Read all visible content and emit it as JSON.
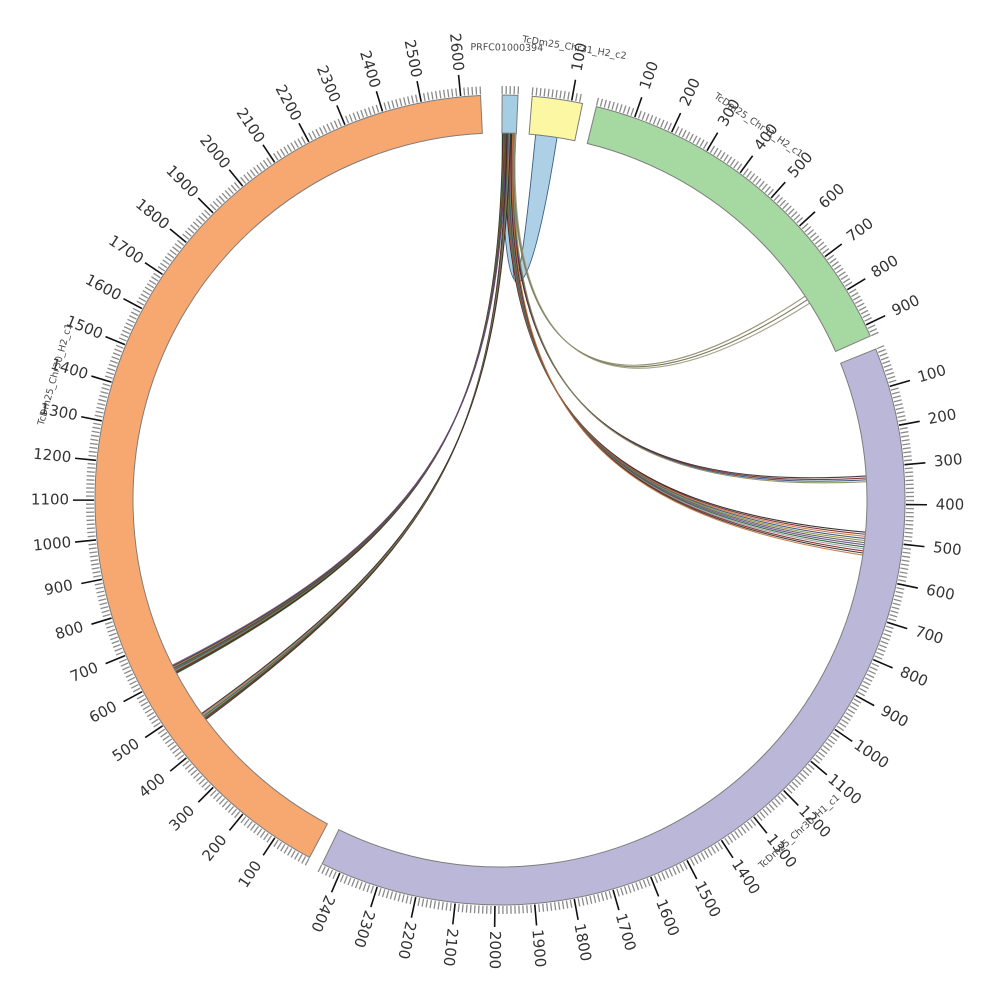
{
  "figure": {
    "background": "#ffffff",
    "description": "Circos-style synteny plot of chromosome contigs with connecting ribbons"
  },
  "chart_data": {
    "type": "circos",
    "center": [
      500,
      500
    ],
    "radius_outer": 405,
    "radius_inner": 367,
    "deg_per_unit": 0.0563,
    "gap_deg": 2.0,
    "start_deg": 0.3,
    "tick": {
      "minor_every": 10,
      "major_every": 100,
      "minor_len": 8,
      "major_len": 21,
      "minor_color": "#8a8a8a",
      "major_color": "#111111",
      "label_radius": 450,
      "label_color": "#333333",
      "label_font_px": 15
    },
    "name_label": {
      "color": "#4a4a4a",
      "font_px": 9.5
    },
    "segments": [
      {
        "name": "PRFC01000394",
        "color": "#A6CEE3",
        "length": 40,
        "flip_tick_labels": false,
        "name_unit": 10,
        "name_radius": 452,
        "name_flip": false
      },
      {
        "name": "TcDm25_Chr31_H2_c2",
        "color": "#FBF7A3",
        "length": 128,
        "flip_tick_labels": false,
        "name_unit": 85,
        "name_radius": 458,
        "name_flip": false
      },
      {
        "name": "TcDm25_Chr31_H2_c1",
        "color": "#A6D8A2",
        "length": 930,
        "flip_tick_labels": false,
        "name_unit": 370,
        "name_radius": 455,
        "name_flip": false
      },
      {
        "name": "TcDm25_Chr30_H1_c1",
        "color": "#BBB7D8",
        "length": 2450,
        "flip_tick_labels": false,
        "name_unit": 1240,
        "name_radius": 447,
        "name_flip": true
      },
      {
        "name": "TcDm25_Chr30_H2_c1",
        "color": "#F7A870",
        "length": 2650,
        "flip_tick_labels": true,
        "name_unit": 1380,
        "name_radius": 462,
        "name_flip": false
      }
    ],
    "ribbons": [
      {
        "kind": "band",
        "from_seg": 0,
        "from_units": [
          1,
          39
        ],
        "to_seg": 1,
        "to_units": [
          18,
          78
        ],
        "rc": 170,
        "fill": "#A9CEE6",
        "stroke": "#3a5f85"
      },
      {
        "kind": "bundle",
        "from_seg": 0,
        "from_units": [
          32,
          38
        ],
        "to_seg": 2,
        "to_units": [
          755,
          778
        ],
        "rc": 130,
        "colors": [
          "#8a8a66",
          "#6b6b4a",
          "#9a9a80"
        ]
      },
      {
        "kind": "bundle",
        "from_seg": 0,
        "from_units": [
          26,
          34
        ],
        "to_seg": 3,
        "to_units": [
          322,
          338
        ],
        "rc": 105,
        "colors": [
          "#2a2a2a",
          "#7a2020",
          "#2f4f7a",
          "#8a8a5a"
        ]
      },
      {
        "kind": "bundle",
        "from_seg": 0,
        "from_units": [
          8,
          30
        ],
        "to_seg": 3,
        "to_units": [
          478,
          542
        ],
        "rc": 95,
        "colors": [
          "#1f1f1f",
          "#7a2020",
          "#c87137",
          "#2f4f7a",
          "#8a8a30",
          "#555555",
          "#6a4a8a",
          "#1f5f2f",
          "#999999",
          "#7a2020",
          "#2a2a2a",
          "#c87137"
        ]
      },
      {
        "kind": "bundle",
        "from_seg": 0,
        "from_units": [
          2,
          12
        ],
        "to_seg": 4,
        "to_units": [
          600,
          625
        ],
        "rc": 80,
        "colors": [
          "#1d4d1d",
          "#2a2a2a",
          "#7a2020",
          "#8a8a30",
          "#2f4f7a",
          "#555555",
          "#1d4d1d",
          "#c87137",
          "#2a2a2a",
          "#6a4a8a"
        ]
      },
      {
        "kind": "bundle",
        "from_seg": 0,
        "from_units": [
          14,
          24
        ],
        "to_seg": 4,
        "to_units": [
          448,
          468
        ],
        "rc": 70,
        "colors": [
          "#2a2a2a",
          "#7a2020",
          "#1d4d1d",
          "#8a8a30",
          "#2f4f7a",
          "#888888",
          "#c87137",
          "#2a2a2a"
        ]
      }
    ]
  }
}
